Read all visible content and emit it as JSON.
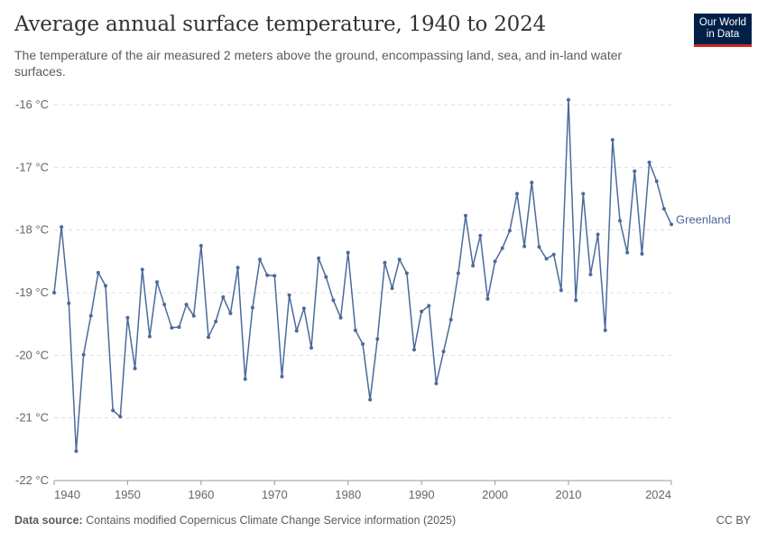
{
  "header": {
    "title": "Average annual surface temperature, 1940 to 2024",
    "subtitle": "The temperature of the air measured 2 meters above the ground, encompassing land, sea, and in-land water surfaces."
  },
  "logo": {
    "line1": "Our World",
    "line2": "in Data"
  },
  "footer": {
    "source_label": "Data source:",
    "source_text": "Contains modified Copernicus Climate Change Service information (2025)",
    "license": "CC BY"
  },
  "colors": {
    "series": "#4c6a9c",
    "grid": "#dddddd",
    "text": "#5b5b5b"
  },
  "chart_data": {
    "type": "line",
    "title": "Average annual surface temperature, 1940 to 2024",
    "ylim": [
      -22,
      -16
    ],
    "xlim": [
      1940,
      2024
    ],
    "yticks": [
      -22,
      -21,
      -20,
      -19,
      -18,
      -17,
      -16
    ],
    "ytick_labels": [
      "-22 °C",
      "-21 °C",
      "-20 °C",
      "-19 °C",
      "-18 °C",
      "-17 °C",
      "-16 °C"
    ],
    "xticks": [
      1940,
      1950,
      1960,
      1970,
      1980,
      1990,
      2000,
      2010,
      2024
    ],
    "xtick_labels": [
      "1940",
      "1950",
      "1960",
      "1970",
      "1980",
      "1990",
      "2000",
      "2010",
      "2024"
    ],
    "grid": "horizontal dashed",
    "legend": "end-of-line label",
    "series": [
      {
        "name": "Greenland",
        "x": [
          1940,
          1941,
          1942,
          1943,
          1944,
          1945,
          1946,
          1947,
          1948,
          1949,
          1950,
          1951,
          1952,
          1953,
          1954,
          1955,
          1956,
          1957,
          1958,
          1959,
          1960,
          1961,
          1962,
          1963,
          1964,
          1965,
          1966,
          1967,
          1968,
          1969,
          1970,
          1971,
          1972,
          1973,
          1974,
          1975,
          1976,
          1977,
          1978,
          1979,
          1980,
          1981,
          1982,
          1983,
          1984,
          1985,
          1986,
          1987,
          1988,
          1989,
          1990,
          1991,
          1992,
          1993,
          1994,
          1995,
          1996,
          1997,
          1998,
          1999,
          2000,
          2001,
          2002,
          2003,
          2004,
          2005,
          2006,
          2007,
          2008,
          2009,
          2010,
          2011,
          2012,
          2013,
          2014,
          2015,
          2016,
          2017,
          2018,
          2019,
          2020,
          2021,
          2022,
          2023,
          2024
        ],
        "values": [
          -19.0,
          -17.95,
          -19.17,
          -21.53,
          -19.99,
          -19.37,
          -18.68,
          -18.89,
          -20.88,
          -20.98,
          -19.4,
          -20.21,
          -18.63,
          -19.7,
          -18.83,
          -19.19,
          -19.56,
          -19.55,
          -19.19,
          -19.37,
          -18.25,
          -19.71,
          -19.46,
          -19.07,
          -19.33,
          -18.6,
          -20.38,
          -19.24,
          -18.47,
          -18.72,
          -18.73,
          -20.34,
          -19.04,
          -19.61,
          -19.25,
          -19.88,
          -18.45,
          -18.75,
          -19.12,
          -19.4,
          -18.36,
          -19.6,
          -19.82,
          -20.71,
          -19.74,
          -18.52,
          -18.93,
          -18.47,
          -18.69,
          -19.91,
          -19.3,
          -19.21,
          -20.45,
          -19.94,
          -19.43,
          -18.69,
          -17.77,
          -18.57,
          -18.09,
          -19.1,
          -18.5,
          -18.29,
          -18.01,
          -17.42,
          -18.26,
          -17.24,
          -18.27,
          -18.46,
          -18.39,
          -18.96,
          -15.92,
          -19.12,
          -17.42,
          -18.71,
          -18.07,
          -19.6,
          -16.56,
          -17.85,
          -18.36,
          -17.06,
          -18.38,
          -16.92,
          -17.22,
          -17.66,
          -17.91
        ]
      }
    ]
  }
}
